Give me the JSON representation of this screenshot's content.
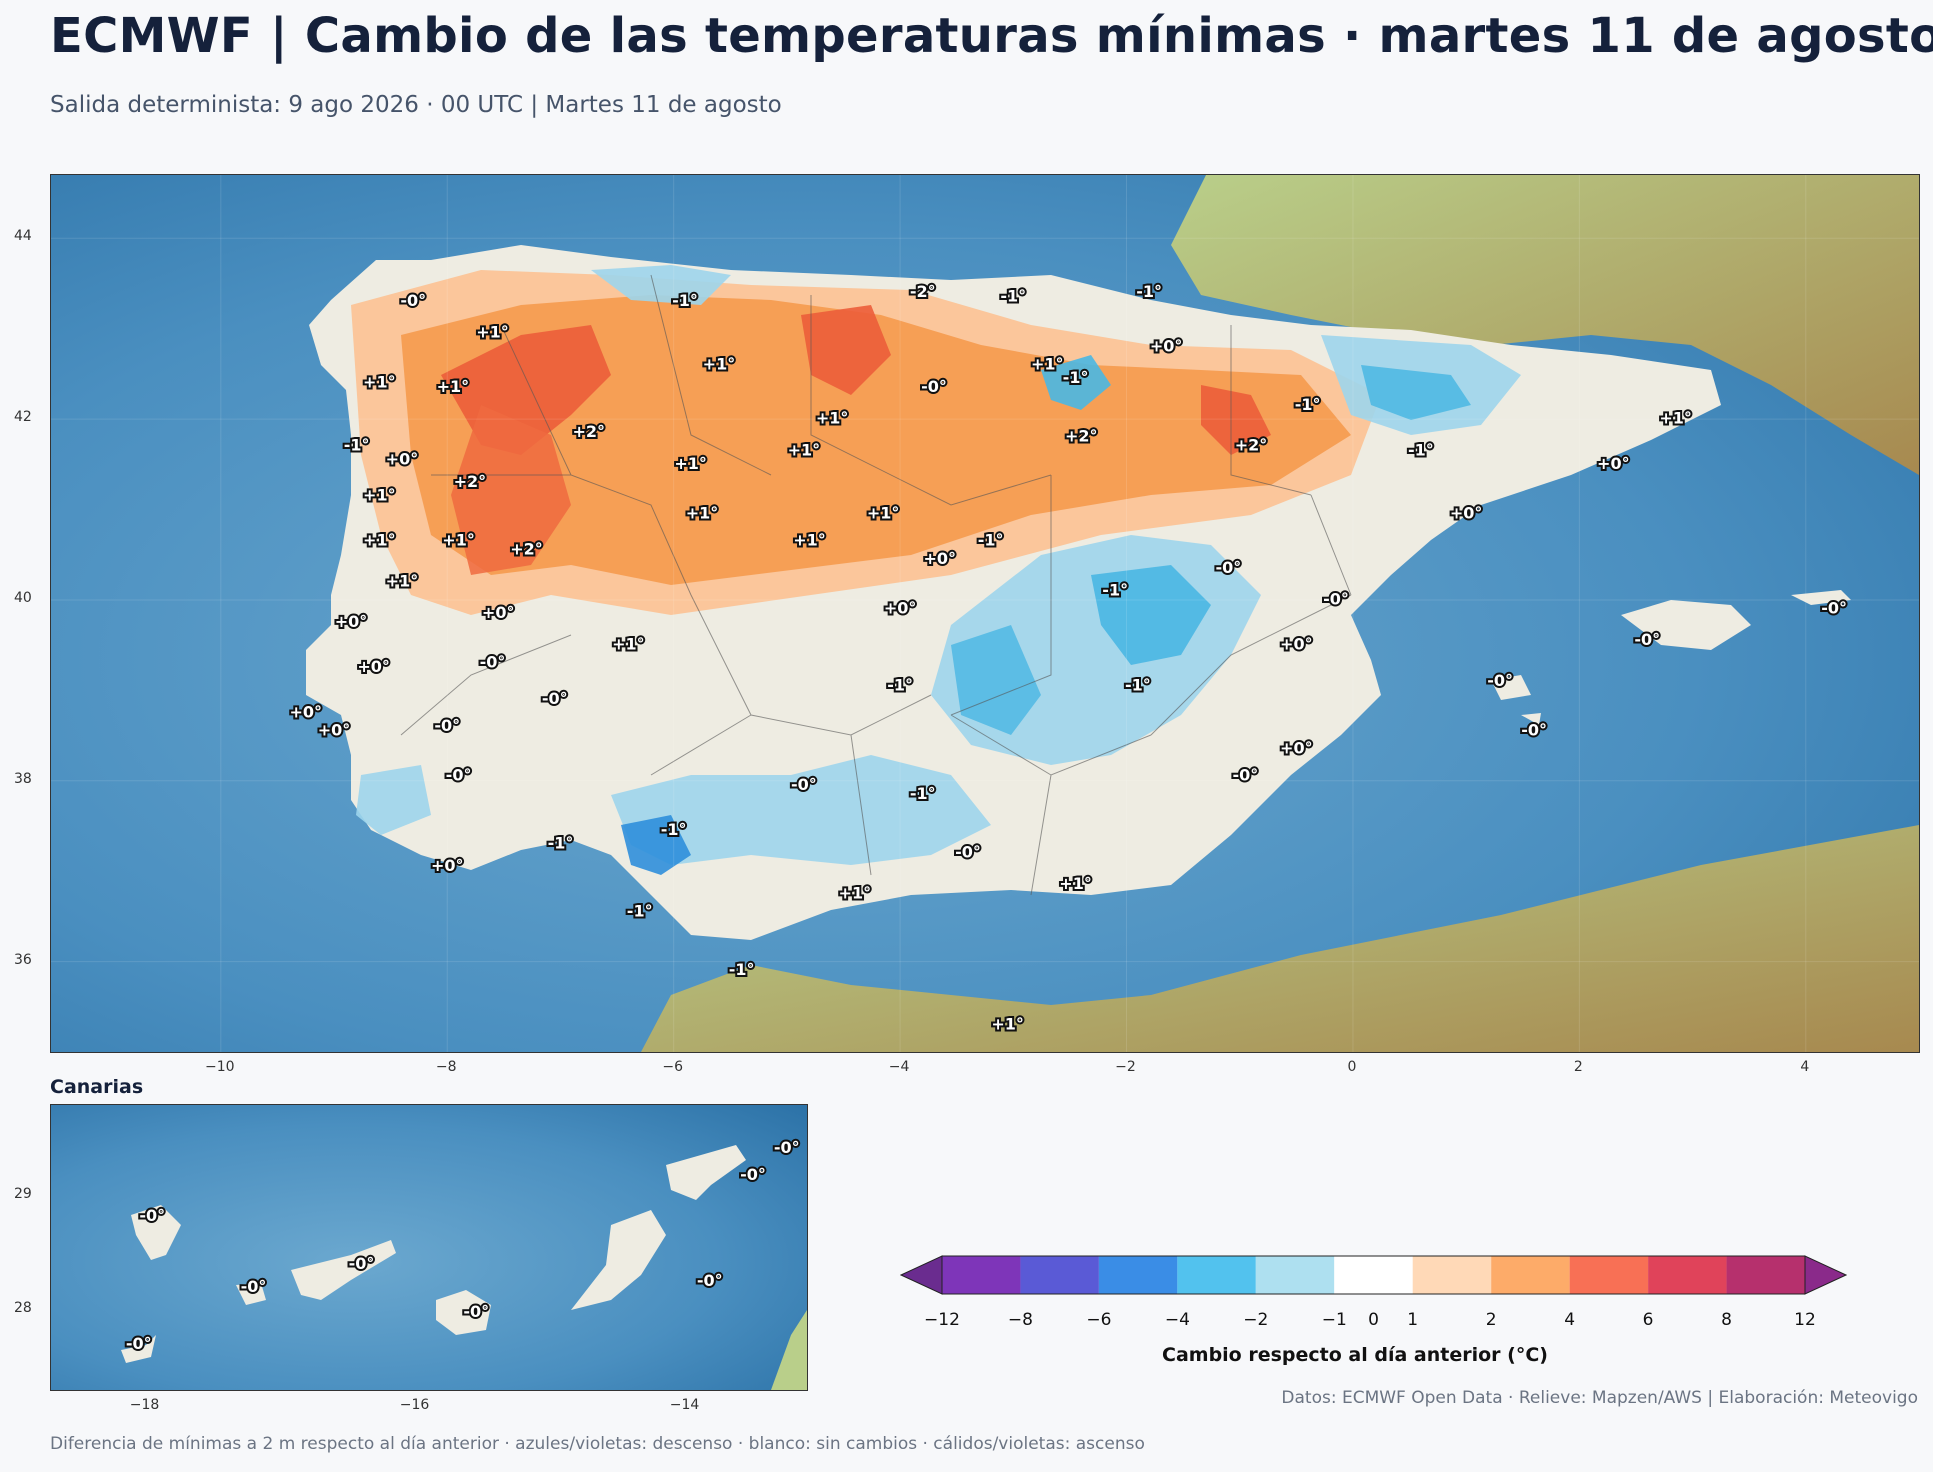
{
  "title": "ECMWF | Cambio de las temperaturas mínimas · martes 11 de agosto",
  "subtitle": "Salida determinista: 9 ago 2026 · 00 UTC  |  Martes 11 de agosto",
  "main_map": {
    "lon_ticks": [
      "−10",
      "−8",
      "−6",
      "−4",
      "−2",
      "0",
      "2",
      "4"
    ],
    "lat_ticks": [
      "44",
      "42",
      "40",
      "38",
      "36"
    ],
    "labels": [
      {
        "text": "-0°",
        "lon": -8.3,
        "lat": 43.3
      },
      {
        "text": "-1°",
        "lon": -5.9,
        "lat": 43.3
      },
      {
        "text": "-2°",
        "lon": -3.8,
        "lat": 43.4
      },
      {
        "text": "-1°",
        "lon": -3.0,
        "lat": 43.35
      },
      {
        "text": "-1°",
        "lon": -1.8,
        "lat": 43.4
      },
      {
        "text": "+1°",
        "lon": -7.6,
        "lat": 42.95
      },
      {
        "text": "+1°",
        "lon": -5.6,
        "lat": 42.6
      },
      {
        "text": "+1°",
        "lon": -2.7,
        "lat": 42.6
      },
      {
        "text": "-1°",
        "lon": -2.45,
        "lat": 42.45
      },
      {
        "text": "+0°",
        "lon": -1.65,
        "lat": 42.8
      },
      {
        "text": "+1°",
        "lon": -8.6,
        "lat": 42.4
      },
      {
        "text": "+1°",
        "lon": -7.95,
        "lat": 42.35
      },
      {
        "text": "-0°",
        "lon": -3.7,
        "lat": 42.35
      },
      {
        "text": "+1°",
        "lon": -4.6,
        "lat": 42.0
      },
      {
        "text": "-1°",
        "lon": -0.4,
        "lat": 42.15
      },
      {
        "text": "+1°",
        "lon": 2.85,
        "lat": 42.0
      },
      {
        "text": "+2°",
        "lon": -6.75,
        "lat": 41.85
      },
      {
        "text": "+2°",
        "lon": -2.4,
        "lat": 41.8
      },
      {
        "text": "+2°",
        "lon": -0.9,
        "lat": 41.7
      },
      {
        "text": "-1°",
        "lon": -8.8,
        "lat": 41.7
      },
      {
        "text": "+0°",
        "lon": -8.4,
        "lat": 41.55
      },
      {
        "text": "+1°",
        "lon": -4.85,
        "lat": 41.65
      },
      {
        "text": "+1°",
        "lon": -5.85,
        "lat": 41.5
      },
      {
        "text": "-1°",
        "lon": 0.6,
        "lat": 41.65
      },
      {
        "text": "+0°",
        "lon": 2.3,
        "lat": 41.5
      },
      {
        "text": "+2°",
        "lon": -7.8,
        "lat": 41.3
      },
      {
        "text": "+1°",
        "lon": -8.6,
        "lat": 41.15
      },
      {
        "text": "+1°",
        "lon": -5.75,
        "lat": 40.95
      },
      {
        "text": "+1°",
        "lon": -4.15,
        "lat": 40.95
      },
      {
        "text": "+0°",
        "lon": 1.0,
        "lat": 40.95
      },
      {
        "text": "+1°",
        "lon": -8.6,
        "lat": 40.65
      },
      {
        "text": "+1°",
        "lon": -7.9,
        "lat": 40.65
      },
      {
        "text": "+1°",
        "lon": -4.8,
        "lat": 40.65
      },
      {
        "text": "-1°",
        "lon": -3.2,
        "lat": 40.65
      },
      {
        "text": "+2°",
        "lon": -7.3,
        "lat": 40.55
      },
      {
        "text": "+0°",
        "lon": -3.65,
        "lat": 40.45
      },
      {
        "text": "-0°",
        "lon": -1.1,
        "lat": 40.35
      },
      {
        "text": "+1°",
        "lon": -8.4,
        "lat": 40.2
      },
      {
        "text": "-1°",
        "lon": -2.1,
        "lat": 40.1
      },
      {
        "text": "+0°",
        "lon": -7.55,
        "lat": 39.85
      },
      {
        "text": "+0°",
        "lon": -4.0,
        "lat": 39.9
      },
      {
        "text": "-0°",
        "lon": -0.15,
        "lat": 40.0
      },
      {
        "text": "+0°",
        "lon": -8.85,
        "lat": 39.75
      },
      {
        "text": "-0°",
        "lon": 2.6,
        "lat": 39.55
      },
      {
        "text": "-0°",
        "lon": 4.25,
        "lat": 39.9
      },
      {
        "text": "+1°",
        "lon": -6.4,
        "lat": 39.5
      },
      {
        "text": "+0°",
        "lon": -0.5,
        "lat": 39.5
      },
      {
        "text": "-0°",
        "lon": -7.6,
        "lat": 39.3
      },
      {
        "text": "+0°",
        "lon": -8.65,
        "lat": 39.25
      },
      {
        "text": "-0°",
        "lon": 1.3,
        "lat": 39.1
      },
      {
        "text": "-1°",
        "lon": -4.0,
        "lat": 39.05
      },
      {
        "text": "-1°",
        "lon": -1.9,
        "lat": 39.05
      },
      {
        "text": "-0°",
        "lon": -7.05,
        "lat": 38.9
      },
      {
        "text": "+0°",
        "lon": -9.25,
        "lat": 38.75
      },
      {
        "text": "+0°",
        "lon": -9.0,
        "lat": 38.55
      },
      {
        "text": "-0°",
        "lon": -8.0,
        "lat": 38.6
      },
      {
        "text": "-0°",
        "lon": 1.6,
        "lat": 38.55
      },
      {
        "text": "+0°",
        "lon": -0.5,
        "lat": 38.35
      },
      {
        "text": "-0°",
        "lon": -7.9,
        "lat": 38.05
      },
      {
        "text": "-0°",
        "lon": -0.95,
        "lat": 38.05
      },
      {
        "text": "-0°",
        "lon": -4.85,
        "lat": 37.95
      },
      {
        "text": "-1°",
        "lon": -3.8,
        "lat": 37.85
      },
      {
        "text": "-1°",
        "lon": -6.0,
        "lat": 37.45
      },
      {
        "text": "-1°",
        "lon": -7.0,
        "lat": 37.3
      },
      {
        "text": "-0°",
        "lon": -3.4,
        "lat": 37.2
      },
      {
        "text": "+0°",
        "lon": -8.0,
        "lat": 37.05
      },
      {
        "text": "+1°",
        "lon": -2.45,
        "lat": 36.85
      },
      {
        "text": "+1°",
        "lon": -4.4,
        "lat": 36.75
      },
      {
        "text": "-1°",
        "lon": -6.3,
        "lat": 36.55
      },
      {
        "text": "-1°",
        "lon": -5.4,
        "lat": 35.9
      },
      {
        "text": "+1°",
        "lon": -3.05,
        "lat": 35.3
      }
    ]
  },
  "inset": {
    "title": "Canarias",
    "lon_ticks": [
      "−18",
      "−16",
      "−14"
    ],
    "lat_ticks": [
      "29",
      "28"
    ],
    "labels": [
      {
        "text": "-0°",
        "lon": -17.95,
        "lat": 28.82
      },
      {
        "text": "-0°",
        "lon": -17.2,
        "lat": 28.2
      },
      {
        "text": "-0°",
        "lon": -16.4,
        "lat": 28.4
      },
      {
        "text": "-0°",
        "lon": -15.55,
        "lat": 27.98
      },
      {
        "text": "-0°",
        "lon": -13.82,
        "lat": 28.25
      },
      {
        "text": "-0°",
        "lon": -13.5,
        "lat": 29.18
      },
      {
        "text": "-0°",
        "lon": -13.25,
        "lat": 29.42
      },
      {
        "text": "-0°",
        "lon": -18.05,
        "lat": 27.7
      }
    ]
  },
  "colorbar": {
    "title": "Cambio respecto al día anterior (°C)",
    "colors": [
      "#6a2c8f",
      "#7e35b9",
      "#5a5ad6",
      "#3a8de6",
      "#52c2ee",
      "#aee0f0",
      "#ffffff",
      "#ffd9b7",
      "#fdab69",
      "#f87055",
      "#e0435a",
      "#b6306d",
      "#8a2a8a"
    ],
    "ticks": [
      "−12",
      "−8",
      "−6",
      "−4",
      "−2",
      "−1",
      "0",
      "1",
      "2",
      "4",
      "6",
      "8",
      "12"
    ]
  },
  "credits": "Datos: ECMWF Open Data · Relieve: Mapzen/AWS  |  Elaboración: Meteovigo",
  "footnote": "Diferencia de mínimas a 2 m respecto al día anterior · azules/violetas: descenso · blanco: sin cambios · cálidos/violetas: ascenso"
}
